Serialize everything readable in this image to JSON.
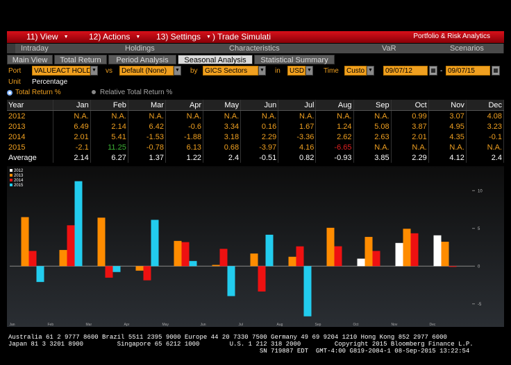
{
  "menu": {
    "view": "11) View",
    "actions": "12) Actions",
    "settings": "13) Settings",
    "trade": "Trade Simulati",
    "brand": "Portfolio & Risk Analytics"
  },
  "tabs_main": [
    "Intraday",
    "Holdings",
    "Characteristics",
    "VaR",
    "Scenarios"
  ],
  "tabs_sub": [
    "Main View",
    "Total Return",
    "Period Analysis",
    "Seasonal Analysis",
    "Statistical Summary"
  ],
  "controls": {
    "port_label": "Port",
    "port_value": "VALUEACT HOLDI",
    "vs_label": "vs",
    "vs_value": "Default (None)",
    "by_label": "by",
    "by_value": "GICS Sectors",
    "in_label": "in",
    "in_value": "USD",
    "time_label": "Time",
    "time_value": "Custo",
    "start_date": "09/07/12",
    "dash": "-",
    "end_date": "09/07/15",
    "unit_label": "Unit",
    "unit_value": "Percentage",
    "radio_total": "Total Return %",
    "radio_relative": "Relative Total Return %"
  },
  "table": {
    "headers": [
      "Year",
      "Jan",
      "Feb",
      "Mar",
      "Apr",
      "May",
      "Jun",
      "Jul",
      "Aug",
      "Sep",
      "Oct",
      "Nov",
      "Dec"
    ],
    "rows": [
      {
        "year": "2012",
        "values": [
          "N.A.",
          "N.A.",
          "N.A.",
          "N.A.",
          "N.A.",
          "N.A.",
          "N.A.",
          "N.A.",
          "N.A.",
          "0.99",
          "3.07",
          "4.08"
        ],
        "colors": [
          "#f0a020",
          "#f0a020",
          "#f0a020",
          "#f0a020",
          "#f0a020",
          "#f0a020",
          "#f0a020",
          "#f0a020",
          "#f0a020",
          "#f0a020",
          "#f0a020",
          "#f0a020"
        ]
      },
      {
        "year": "2013",
        "values": [
          "6.49",
          "2.14",
          "6.42",
          "-0.6",
          "3.34",
          "0.16",
          "1.67",
          "1.24",
          "5.08",
          "3.87",
          "4.95",
          "3.23"
        ],
        "colors": [
          "#f0a020",
          "#f0a020",
          "#f0a020",
          "#f0a020",
          "#f0a020",
          "#f0a020",
          "#f0a020",
          "#f0a020",
          "#f0a020",
          "#f0a020",
          "#f0a020",
          "#f0a020"
        ]
      },
      {
        "year": "2014",
        "values": [
          "2.01",
          "5.41",
          "-1.53",
          "-1.88",
          "3.18",
          "2.29",
          "-3.36",
          "2.62",
          "2.63",
          "2.01",
          "4.35",
          "-0.1"
        ],
        "colors": [
          "#f0a020",
          "#f0a020",
          "#f0a020",
          "#f0a020",
          "#f0a020",
          "#f0a020",
          "#f0a020",
          "#f0a020",
          "#f0a020",
          "#f0a020",
          "#f0a020",
          "#f0a020"
        ]
      },
      {
        "year": "2015",
        "values": [
          "-2.1",
          "11.25",
          "-0.78",
          "6.13",
          "0.68",
          "-3.97",
          "4.16",
          "-6.65",
          "N.A.",
          "N.A.",
          "N.A.",
          "N.A."
        ],
        "colors": [
          "#f0a020",
          "#3cb034",
          "#f0a020",
          "#f0a020",
          "#f0a020",
          "#f0a020",
          "#f0a020",
          "#e02020",
          "#f0a020",
          "#f0a020",
          "#f0a020",
          "#f0a020"
        ]
      }
    ],
    "avg": {
      "label": "Average",
      "values": [
        "2.14",
        "6.27",
        "1.37",
        "1.22",
        "2.4",
        "-0.51",
        "0.82",
        "-0.93",
        "3.85",
        "2.29",
        "4.12",
        "2.4"
      ]
    }
  },
  "chart_data": {
    "type": "bar",
    "categories": [
      "Jan",
      "Feb",
      "Mar",
      "Apr",
      "May",
      "Jun",
      "Jul",
      "Aug",
      "Sep",
      "Oct",
      "Nov",
      "Dec"
    ],
    "series": [
      {
        "name": "2012",
        "color": "#ffffff",
        "values": [
          null,
          null,
          null,
          null,
          null,
          null,
          null,
          null,
          null,
          0.99,
          3.07,
          4.08
        ]
      },
      {
        "name": "2013",
        "color": "#ff8c00",
        "values": [
          6.49,
          2.14,
          6.42,
          -0.6,
          3.34,
          0.16,
          1.67,
          1.24,
          5.08,
          3.87,
          4.95,
          3.23
        ]
      },
      {
        "name": "2014",
        "color": "#ee1111",
        "values": [
          2.01,
          5.41,
          -1.53,
          -1.88,
          3.18,
          2.29,
          -3.36,
          2.62,
          2.63,
          2.01,
          4.35,
          -0.1
        ]
      },
      {
        "name": "2015",
        "color": "#22ccee",
        "values": [
          -2.1,
          11.25,
          -0.78,
          6.13,
          0.68,
          -3.97,
          4.16,
          -6.65,
          null,
          null,
          null,
          null
        ]
      }
    ],
    "ylim": [
      -7.5,
      12.5
    ],
    "yticks": [
      "10",
      "5",
      "0",
      "-5"
    ],
    "legend_position": "top-left",
    "grid": false
  },
  "footer": {
    "line1": "Australia 61 2 9777 8600 Brazil 5511 2395 9000 Europe 44 20 7330 7500 Germany 49 69 9204 1210 Hong Kong 852 2977 6000",
    "line2": "Japan 81 3 3201 8900         Singapore 65 6212 1000        U.S. 1 212 318 2000         Copyright 2015 Bloomberg Finance L.P.",
    "line3": "                                                                   SN 719887 EDT  GMT-4:00 G819-2084-1 08-Sep-2015 13:22:54"
  }
}
